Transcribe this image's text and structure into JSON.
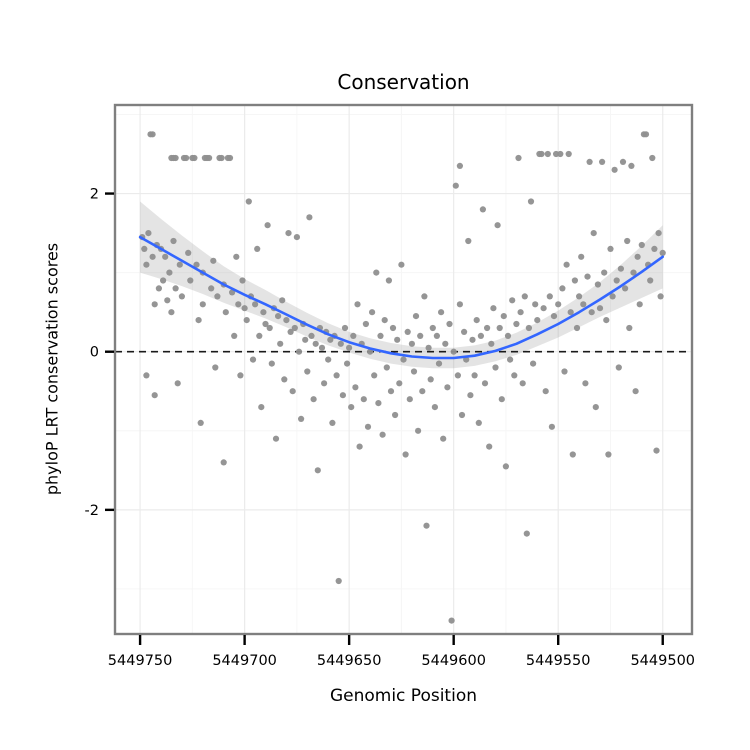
{
  "chart_data": {
    "type": "scatter",
    "title": "Conservation",
    "xlabel": "Genomic Position",
    "ylabel": "phyloP LRT conservation scores",
    "x_axis_reversed": true,
    "xlim": [
      5449762,
      5449486
    ],
    "ylim": [
      3.12,
      -3.57
    ],
    "x_ticks": [
      5449750,
      5449700,
      5449650,
      5449600,
      5449550,
      5449500
    ],
    "y_ticks": [
      2,
      0,
      -2
    ],
    "x_minor": [
      5449725,
      5449675,
      5449625,
      5449575,
      5449525
    ],
    "y_minor": [
      3,
      1,
      -1,
      -3
    ],
    "reference_line_y": 0,
    "colors": {
      "point": "#8f8f8f",
      "smooth_line": "#3366ff",
      "ribbon": "#9e9e9e",
      "grid_major": "#ebebeb",
      "grid_minor": "#f6f6f6",
      "frame": "#7f7f7f",
      "reference_line": "#1a1a1a",
      "tick": "#000000"
    },
    "smooth": {
      "x": [
        5449750,
        5449740,
        5449730,
        5449720,
        5449710,
        5449700,
        5449690,
        5449680,
        5449670,
        5449660,
        5449650,
        5449640,
        5449630,
        5449620,
        5449610,
        5449600,
        5449590,
        5449580,
        5449570,
        5449560,
        5449550,
        5449540,
        5449530,
        5449520,
        5449510,
        5449500
      ],
      "y": [
        1.45,
        1.3,
        1.15,
        1.0,
        0.85,
        0.72,
        0.6,
        0.47,
        0.34,
        0.22,
        0.12,
        0.04,
        -0.02,
        -0.06,
        -0.08,
        -0.08,
        -0.05,
        0.01,
        0.1,
        0.22,
        0.35,
        0.5,
        0.66,
        0.83,
        1.01,
        1.2
      ],
      "ci": [
        0.45,
        0.38,
        0.32,
        0.27,
        0.23,
        0.2,
        0.18,
        0.16,
        0.15,
        0.14,
        0.13,
        0.13,
        0.13,
        0.13,
        0.13,
        0.13,
        0.13,
        0.13,
        0.14,
        0.15,
        0.17,
        0.19,
        0.22,
        0.27,
        0.33,
        0.4
      ]
    },
    "points": [
      [
        5449749,
        1.45
      ],
      [
        5449748,
        1.3
      ],
      [
        5449747,
        -0.3
      ],
      [
        5449747,
        1.1
      ],
      [
        5449746,
        1.5
      ],
      [
        5449745,
        2.75
      ],
      [
        5449744,
        2.75
      ],
      [
        5449744,
        1.2
      ],
      [
        5449743,
        -0.55
      ],
      [
        5449743,
        0.6
      ],
      [
        5449742,
        1.35
      ],
      [
        5449741,
        0.8
      ],
      [
        5449740,
        1.3
      ],
      [
        5449739,
        0.9
      ],
      [
        5449738,
        1.2
      ],
      [
        5449737,
        0.65
      ],
      [
        5449736,
        1.0
      ],
      [
        5449735,
        2.45
      ],
      [
        5449735,
        0.5
      ],
      [
        5449734,
        2.45
      ],
      [
        5449734,
        1.4
      ],
      [
        5449733,
        2.45
      ],
      [
        5449733,
        0.8
      ],
      [
        5449732,
        -0.4
      ],
      [
        5449731,
        1.1
      ],
      [
        5449730,
        0.7
      ],
      [
        5449729,
        2.45
      ],
      [
        5449728,
        2.45
      ],
      [
        5449727,
        1.25
      ],
      [
        5449726,
        0.9
      ],
      [
        5449725,
        2.45
      ],
      [
        5449724,
        2.45
      ],
      [
        5449723,
        1.1
      ],
      [
        5449722,
        0.4
      ],
      [
        5449721,
        -0.9
      ],
      [
        5449720,
        1.0
      ],
      [
        5449720,
        0.6
      ],
      [
        5449719,
        2.45
      ],
      [
        5449718,
        2.45
      ],
      [
        5449717,
        2.45
      ],
      [
        5449716,
        0.8
      ],
      [
        5449715,
        1.15
      ],
      [
        5449714,
        -0.2
      ],
      [
        5449713,
        0.7
      ],
      [
        5449712,
        2.45
      ],
      [
        5449711,
        2.45
      ],
      [
        5449710,
        0.85
      ],
      [
        5449710,
        -1.4
      ],
      [
        5449709,
        0.5
      ],
      [
        5449708,
        2.45
      ],
      [
        5449707,
        2.45
      ],
      [
        5449706,
        0.75
      ],
      [
        5449705,
        0.2
      ],
      [
        5449704,
        1.2
      ],
      [
        5449703,
        0.6
      ],
      [
        5449702,
        -0.3
      ],
      [
        5449701,
        0.9
      ],
      [
        5449700,
        0.55
      ],
      [
        5449699,
        0.4
      ],
      [
        5449698,
        1.9
      ],
      [
        5449697,
        0.7
      ],
      [
        5449696,
        -0.1
      ],
      [
        5449695,
        0.6
      ],
      [
        5449694,
        1.3
      ],
      [
        5449693,
        0.2
      ],
      [
        5449692,
        -0.7
      ],
      [
        5449691,
        0.5
      ],
      [
        5449690,
        0.35
      ],
      [
        5449689,
        1.6
      ],
      [
        5449688,
        0.3
      ],
      [
        5449687,
        -0.15
      ],
      [
        5449686,
        0.55
      ],
      [
        5449685,
        -1.1
      ],
      [
        5449684,
        0.45
      ],
      [
        5449683,
        0.1
      ],
      [
        5449682,
        0.65
      ],
      [
        5449681,
        -0.35
      ],
      [
        5449680,
        0.4
      ],
      [
        5449679,
        1.5
      ],
      [
        5449678,
        0.25
      ],
      [
        5449677,
        -0.5
      ],
      [
        5449676,
        0.3
      ],
      [
        5449675,
        1.45
      ],
      [
        5449674,
        0.0
      ],
      [
        5449673,
        -0.85
      ],
      [
        5449672,
        0.35
      ],
      [
        5449671,
        0.15
      ],
      [
        5449670,
        -0.25
      ],
      [
        5449669,
        1.7
      ],
      [
        5449668,
        0.2
      ],
      [
        5449667,
        -0.6
      ],
      [
        5449666,
        0.1
      ],
      [
        5449665,
        -1.5
      ],
      [
        5449664,
        0.3
      ],
      [
        5449663,
        0.05
      ],
      [
        5449662,
        -0.4
      ],
      [
        5449661,
        0.25
      ],
      [
        5449660,
        -0.1
      ],
      [
        5449659,
        0.15
      ],
      [
        5449658,
        -0.9
      ],
      [
        5449657,
        0.2
      ],
      [
        5449656,
        -0.3
      ],
      [
        5449655,
        -2.9
      ],
      [
        5449654,
        0.1
      ],
      [
        5449653,
        -0.55
      ],
      [
        5449652,
        0.3
      ],
      [
        5449651,
        -0.15
      ],
      [
        5449650,
        0.05
      ],
      [
        5449649,
        -0.7
      ],
      [
        5449648,
        0.2
      ],
      [
        5449647,
        -0.45
      ],
      [
        5449646,
        0.6
      ],
      [
        5449645,
        -1.2
      ],
      [
        5449644,
        0.1
      ],
      [
        5449643,
        -0.6
      ],
      [
        5449642,
        0.35
      ],
      [
        5449641,
        -0.95
      ],
      [
        5449640,
        0.0
      ],
      [
        5449639,
        0.5
      ],
      [
        5449638,
        -0.3
      ],
      [
        5449637,
        1.0
      ],
      [
        5449636,
        -0.65
      ],
      [
        5449635,
        0.2
      ],
      [
        5449634,
        -1.05
      ],
      [
        5449633,
        0.4
      ],
      [
        5449632,
        -0.2
      ],
      [
        5449631,
        0.9
      ],
      [
        5449630,
        -0.5
      ],
      [
        5449629,
        0.3
      ],
      [
        5449628,
        -0.8
      ],
      [
        5449627,
        0.15
      ],
      [
        5449626,
        -0.4
      ],
      [
        5449625,
        1.1
      ],
      [
        5449624,
        -0.1
      ],
      [
        5449623,
        -1.3
      ],
      [
        5449622,
        0.25
      ],
      [
        5449621,
        -0.6
      ],
      [
        5449620,
        0.1
      ],
      [
        5449619,
        -0.25
      ],
      [
        5449618,
        0.45
      ],
      [
        5449617,
        -1.0
      ],
      [
        5449616,
        0.2
      ],
      [
        5449615,
        -0.5
      ],
      [
        5449614,
        0.7
      ],
      [
        5449613,
        -2.2
      ],
      [
        5449612,
        0.05
      ],
      [
        5449611,
        -0.35
      ],
      [
        5449610,
        0.3
      ],
      [
        5449609,
        -0.7
      ],
      [
        5449608,
        0.2
      ],
      [
        5449607,
        -0.15
      ],
      [
        5449606,
        0.5
      ],
      [
        5449605,
        -1.1
      ],
      [
        5449604,
        0.1
      ],
      [
        5449603,
        -0.45
      ],
      [
        5449602,
        0.35
      ],
      [
        5449601,
        -3.4
      ],
      [
        5449600,
        0.0
      ],
      [
        5449599,
        2.1
      ],
      [
        5449598,
        -0.3
      ],
      [
        5449597,
        2.35
      ],
      [
        5449597,
        0.6
      ],
      [
        5449596,
        -0.8
      ],
      [
        5449595,
        0.25
      ],
      [
        5449594,
        -0.1
      ],
      [
        5449593,
        1.4
      ],
      [
        5449592,
        -0.55
      ],
      [
        5449591,
        0.15
      ],
      [
        5449590,
        -0.3
      ],
      [
        5449589,
        0.4
      ],
      [
        5449588,
        -0.9
      ],
      [
        5449587,
        0.2
      ],
      [
        5449586,
        1.8
      ],
      [
        5449585,
        -0.4
      ],
      [
        5449584,
        0.3
      ],
      [
        5449583,
        -1.2
      ],
      [
        5449582,
        0.1
      ],
      [
        5449581,
        0.55
      ],
      [
        5449580,
        -0.2
      ],
      [
        5449579,
        1.6
      ],
      [
        5449578,
        0.3
      ],
      [
        5449577,
        -0.6
      ],
      [
        5449576,
        0.45
      ],
      [
        5449575,
        -1.45
      ],
      [
        5449574,
        0.2
      ],
      [
        5449573,
        -0.1
      ],
      [
        5449572,
        0.65
      ],
      [
        5449571,
        -0.3
      ],
      [
        5449570,
        0.35
      ],
      [
        5449569,
        2.45
      ],
      [
        5449568,
        0.5
      ],
      [
        5449567,
        -0.4
      ],
      [
        5449566,
        0.7
      ],
      [
        5449565,
        -2.3
      ],
      [
        5449564,
        0.3
      ],
      [
        5449563,
        1.9
      ],
      [
        5449562,
        -0.15
      ],
      [
        5449561,
        0.6
      ],
      [
        5449560,
        0.4
      ],
      [
        5449559,
        2.5
      ],
      [
        5449558,
        2.5
      ],
      [
        5449557,
        0.55
      ],
      [
        5449556,
        -0.5
      ],
      [
        5449555,
        2.5
      ],
      [
        5449554,
        0.7
      ],
      [
        5449553,
        -0.95
      ],
      [
        5449552,
        0.45
      ],
      [
        5449551,
        2.5
      ],
      [
        5449550,
        0.6
      ],
      [
        5449549,
        2.5
      ],
      [
        5449548,
        0.8
      ],
      [
        5449547,
        -0.25
      ],
      [
        5449546,
        1.1
      ],
      [
        5449545,
        2.5
      ],
      [
        5449544,
        0.5
      ],
      [
        5449543,
        -1.3
      ],
      [
        5449542,
        0.9
      ],
      [
        5449541,
        0.3
      ],
      [
        5449540,
        0.7
      ],
      [
        5449539,
        1.2
      ],
      [
        5449538,
        0.6
      ],
      [
        5449537,
        -0.4
      ],
      [
        5449536,
        0.95
      ],
      [
        5449535,
        2.4
      ],
      [
        5449534,
        0.5
      ],
      [
        5449533,
        1.5
      ],
      [
        5449532,
        -0.7
      ],
      [
        5449531,
        0.85
      ],
      [
        5449530,
        0.55
      ],
      [
        5449529,
        2.4
      ],
      [
        5449528,
        1.0
      ],
      [
        5449527,
        0.4
      ],
      [
        5449526,
        -1.3
      ],
      [
        5449525,
        1.3
      ],
      [
        5449524,
        0.7
      ],
      [
        5449523,
        2.3
      ],
      [
        5449522,
        0.9
      ],
      [
        5449521,
        -0.2
      ],
      [
        5449520,
        1.05
      ],
      [
        5449519,
        2.4
      ],
      [
        5449518,
        0.8
      ],
      [
        5449517,
        1.4
      ],
      [
        5449516,
        0.3
      ],
      [
        5449515,
        2.35
      ],
      [
        5449514,
        1.0
      ],
      [
        5449513,
        -0.5
      ],
      [
        5449512,
        1.2
      ],
      [
        5449511,
        0.6
      ],
      [
        5449510,
        1.35
      ],
      [
        5449509,
        2.75
      ],
      [
        5449508,
        2.75
      ],
      [
        5449507,
        1.1
      ],
      [
        5449506,
        0.9
      ],
      [
        5449505,
        2.45
      ],
      [
        5449504,
        1.3
      ],
      [
        5449503,
        -1.25
      ],
      [
        5449502,
        1.5
      ],
      [
        5449501,
        0.7
      ],
      [
        5449500,
        1.25
      ]
    ]
  }
}
